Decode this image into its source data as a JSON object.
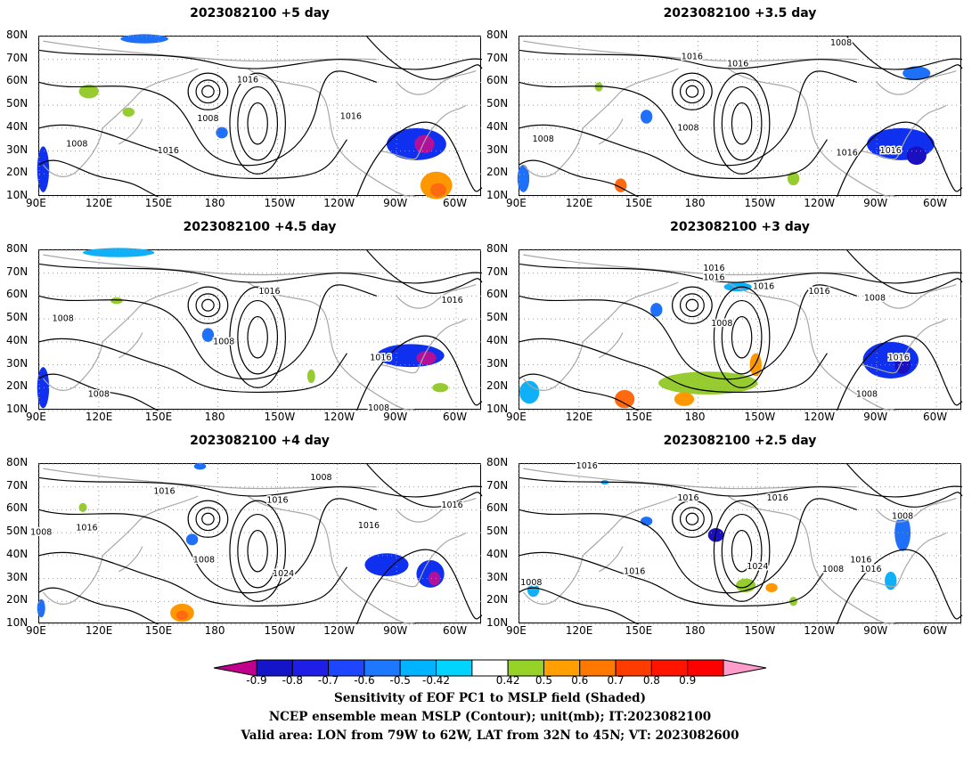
{
  "panels": [
    {
      "title": "2023082100 +5 day",
      "contour_labels": [
        {
          "text": "1016",
          "lon": 195,
          "lat": 61
        },
        {
          "text": "1016",
          "lon": 247,
          "lat": 45
        },
        {
          "text": "1008",
          "lon": 175,
          "lat": 44
        },
        {
          "text": "1008",
          "lon": 109,
          "lat": 33
        },
        {
          "text": "1016",
          "lon": 155,
          "lat": 30
        }
      ],
      "shading": [
        {
          "lon": 280,
          "lat": 33,
          "rx": 15,
          "ry": 7,
          "value": -0.7
        },
        {
          "lon": 284,
          "lat": 33,
          "rx": 5,
          "ry": 4,
          "value": -0.9
        },
        {
          "lon": 182,
          "lat": 38,
          "rx": 3,
          "ry": 2.5,
          "value": -0.6
        },
        {
          "lon": 92,
          "lat": 22,
          "rx": 3,
          "ry": 10,
          "value": -0.7
        },
        {
          "lon": 143,
          "lat": 79,
          "rx": 12,
          "ry": 2,
          "value": -0.6
        },
        {
          "lon": 115,
          "lat": 56,
          "rx": 5,
          "ry": 3,
          "value": 0.5
        },
        {
          "lon": 135,
          "lat": 47,
          "rx": 3,
          "ry": 2,
          "value": 0.5
        },
        {
          "lon": 290,
          "lat": 15,
          "rx": 8,
          "ry": 6,
          "value": 0.6
        },
        {
          "lon": 291,
          "lat": 13,
          "rx": 4,
          "ry": 3,
          "value": 0.7
        }
      ]
    },
    {
      "title": "2023082100 +3.5 day",
      "contour_labels": [
        {
          "text": "1008",
          "lon": 252,
          "lat": 77
        },
        {
          "text": "1016",
          "lon": 177,
          "lat": 71
        },
        {
          "text": "1016",
          "lon": 200,
          "lat": 68
        },
        {
          "text": "1008",
          "lon": 175,
          "lat": 40
        },
        {
          "text": "1008",
          "lon": 102,
          "lat": 35
        },
        {
          "text": "1016",
          "lon": 255,
          "lat": 29
        },
        {
          "text": "1016",
          "lon": 277,
          "lat": 30
        }
      ],
      "shading": [
        {
          "lon": 282,
          "lat": 33,
          "rx": 17,
          "ry": 7,
          "value": -0.7
        },
        {
          "lon": 290,
          "lat": 28,
          "rx": 5,
          "ry": 4,
          "value": -0.8
        },
        {
          "lon": 154,
          "lat": 45,
          "rx": 3,
          "ry": 3,
          "value": -0.6
        },
        {
          "lon": 290,
          "lat": 64,
          "rx": 7,
          "ry": 3,
          "value": -0.6
        },
        {
          "lon": 92,
          "lat": 18,
          "rx": 3,
          "ry": 6,
          "value": -0.6
        },
        {
          "lon": 130,
          "lat": 58,
          "rx": 2,
          "ry": 2,
          "value": 0.5
        },
        {
          "lon": 228,
          "lat": 18,
          "rx": 3,
          "ry": 3,
          "value": 0.5
        },
        {
          "lon": 141,
          "lat": 15,
          "rx": 3,
          "ry": 3,
          "value": 0.7
        }
      ]
    },
    {
      "title": "2023082100 +4.5 day",
      "contour_labels": [
        {
          "text": "1016",
          "lon": 206,
          "lat": 62
        },
        {
          "text": "1016",
          "lon": 298,
          "lat": 58
        },
        {
          "text": "1008",
          "lon": 102,
          "lat": 50
        },
        {
          "text": "1008",
          "lon": 183,
          "lat": 40
        },
        {
          "text": "1016",
          "lon": 262,
          "lat": 33
        },
        {
          "text": "1008",
          "lon": 120,
          "lat": 17
        },
        {
          "text": "1008",
          "lon": 261,
          "lat": 11
        }
      ],
      "shading": [
        {
          "lon": 277,
          "lat": 34,
          "rx": 17,
          "ry": 5,
          "value": -0.7
        },
        {
          "lon": 285,
          "lat": 33,
          "rx": 5,
          "ry": 3,
          "value": -0.9
        },
        {
          "lon": 175,
          "lat": 43,
          "rx": 3,
          "ry": 3,
          "value": -0.6
        },
        {
          "lon": 92,
          "lat": 20,
          "rx": 3,
          "ry": 9,
          "value": -0.7
        },
        {
          "lon": 130,
          "lat": 79,
          "rx": 18,
          "ry": 2,
          "value": -0.5
        },
        {
          "lon": 129,
          "lat": 58,
          "rx": 3,
          "ry": 1.5,
          "value": 0.5
        },
        {
          "lon": 227,
          "lat": 25,
          "rx": 2,
          "ry": 3,
          "value": 0.5
        },
        {
          "lon": 292,
          "lat": 20,
          "rx": 4,
          "ry": 2,
          "value": 0.5
        }
      ]
    },
    {
      "title": "2023082100 +3 day",
      "contour_labels": [
        {
          "text": "1016",
          "lon": 188,
          "lat": 72
        },
        {
          "text": "1016",
          "lon": 188,
          "lat": 68
        },
        {
          "text": "1016",
          "lon": 213,
          "lat": 64
        },
        {
          "text": "1016",
          "lon": 241,
          "lat": 62
        },
        {
          "text": "1008",
          "lon": 269,
          "lat": 59
        },
        {
          "text": "1008",
          "lon": 192,
          "lat": 48
        },
        {
          "text": "1016",
          "lon": 281,
          "lat": 33
        },
        {
          "text": "1008",
          "lon": 265,
          "lat": 17
        }
      ],
      "shading": [
        {
          "lon": 277,
          "lat": 32,
          "rx": 14,
          "ry": 8,
          "value": -0.7
        },
        {
          "lon": 283,
          "lat": 30,
          "rx": 4,
          "ry": 4,
          "value": -0.8
        },
        {
          "lon": 159,
          "lat": 54,
          "rx": 3,
          "ry": 3,
          "value": -0.6
        },
        {
          "lon": 200,
          "lat": 64,
          "rx": 7,
          "ry": 2,
          "value": -0.5
        },
        {
          "lon": 95,
          "lat": 18,
          "rx": 5,
          "ry": 5,
          "value": -0.5
        },
        {
          "lon": 185,
          "lat": 22,
          "rx": 25,
          "ry": 5,
          "value": 0.5
        },
        {
          "lon": 143,
          "lat": 15,
          "rx": 5,
          "ry": 4,
          "value": 0.7
        },
        {
          "lon": 173,
          "lat": 15,
          "rx": 5,
          "ry": 3,
          "value": 0.6
        },
        {
          "lon": 209,
          "lat": 30,
          "rx": 3,
          "ry": 5,
          "value": 0.6
        }
      ]
    },
    {
      "title": "2023082100 +4 day",
      "contour_labels": [
        {
          "text": "1016",
          "lon": 153,
          "lat": 68
        },
        {
          "text": "1008",
          "lon": 232,
          "lat": 74
        },
        {
          "text": "1016",
          "lon": 210,
          "lat": 64
        },
        {
          "text": "1016",
          "lon": 298,
          "lat": 62
        },
        {
          "text": "1016",
          "lon": 114,
          "lat": 52
        },
        {
          "text": "1016",
          "lon": 256,
          "lat": 53
        },
        {
          "text": "1008",
          "lon": 91,
          "lat": 50
        },
        {
          "text": "1008",
          "lon": 173,
          "lat": 38
        },
        {
          "text": "1024",
          "lon": 213,
          "lat": 32
        }
      ],
      "shading": [
        {
          "lon": 265,
          "lat": 36,
          "rx": 11,
          "ry": 5,
          "value": -0.7
        },
        {
          "lon": 287,
          "lat": 32,
          "rx": 7,
          "ry": 6,
          "value": -0.7
        },
        {
          "lon": 289,
          "lat": 30,
          "rx": 3,
          "ry": 3,
          "value": -0.9
        },
        {
          "lon": 167,
          "lat": 47,
          "rx": 3,
          "ry": 2.5,
          "value": -0.6
        },
        {
          "lon": 171,
          "lat": 79,
          "rx": 3,
          "ry": 1.5,
          "value": -0.6
        },
        {
          "lon": 91,
          "lat": 17,
          "rx": 2,
          "ry": 4,
          "value": -0.6
        },
        {
          "lon": 162,
          "lat": 15,
          "rx": 6,
          "ry": 4,
          "value": 0.6
        },
        {
          "lon": 162,
          "lat": 14,
          "rx": 3,
          "ry": 2,
          "value": 0.7
        },
        {
          "lon": 112,
          "lat": 61,
          "rx": 2,
          "ry": 2,
          "value": 0.5
        }
      ]
    },
    {
      "title": "2023082100 +2.5 day",
      "contour_labels": [
        {
          "text": "1016",
          "lon": 124,
          "lat": 79
        },
        {
          "text": "1016",
          "lon": 175,
          "lat": 65
        },
        {
          "text": "1016",
          "lon": 220,
          "lat": 65
        },
        {
          "text": "1008",
          "lon": 283,
          "lat": 57
        },
        {
          "text": "1024",
          "lon": 210,
          "lat": 35
        },
        {
          "text": "1016",
          "lon": 148,
          "lat": 33
        },
        {
          "text": "1008",
          "lon": 248,
          "lat": 34
        },
        {
          "text": "1016",
          "lon": 262,
          "lat": 38
        },
        {
          "text": "1016",
          "lon": 267,
          "lat": 34
        },
        {
          "text": "1008",
          "lon": 96,
          "lat": 28
        }
      ],
      "shading": [
        {
          "lon": 283,
          "lat": 50,
          "rx": 4,
          "ry": 8,
          "value": -0.6
        },
        {
          "lon": 277,
          "lat": 29,
          "rx": 3,
          "ry": 4,
          "value": -0.5
        },
        {
          "lon": 189,
          "lat": 49,
          "rx": 4,
          "ry": 3,
          "value": -0.8
        },
        {
          "lon": 154,
          "lat": 55,
          "rx": 3,
          "ry": 2,
          "value": -0.6
        },
        {
          "lon": 133,
          "lat": 72,
          "rx": 2,
          "ry": 1,
          "value": -0.5
        },
        {
          "lon": 97,
          "lat": 25,
          "rx": 3,
          "ry": 3,
          "value": -0.5
        },
        {
          "lon": 204,
          "lat": 27,
          "rx": 5,
          "ry": 3,
          "value": 0.5
        },
        {
          "lon": 217,
          "lat": 26,
          "rx": 3,
          "ry": 2,
          "value": 0.6
        },
        {
          "lon": 228,
          "lat": 20,
          "rx": 2,
          "ry": 2,
          "value": 0.5
        }
      ]
    }
  ],
  "axes": {
    "lon_ticks": [
      "90E",
      "120E",
      "150E",
      "180",
      "150W",
      "120W",
      "90W",
      "60W"
    ],
    "lon_values": [
      90,
      120,
      150,
      180,
      210,
      240,
      270,
      300
    ],
    "lat_ticks": [
      "10N",
      "20N",
      "30N",
      "40N",
      "50N",
      "60N",
      "70N",
      "80N"
    ],
    "lat_values": [
      10,
      20,
      30,
      40,
      50,
      60,
      70,
      80
    ],
    "lon_range": [
      90,
      313
    ],
    "lat_range": [
      10,
      80
    ]
  },
  "colorbar": {
    "labels": [
      "-0.9",
      "-0.8",
      "-0.7",
      "-0.6",
      "-0.5",
      "-0.42",
      "0.42",
      "0.5",
      "0.6",
      "0.7",
      "0.8",
      "0.9"
    ],
    "colors": [
      "#c1008c",
      "#1414c8",
      "#1e1ee6",
      "#1e46ff",
      "#1e78ff",
      "#00b4ff",
      "#00d4ff",
      "#ffffff",
      "#96d228",
      "#ffa000",
      "#ff7800",
      "#ff3c00",
      "#ff1400",
      "#ff0000",
      "#ff9ccc"
    ]
  },
  "footer": {
    "line1": "Sensitivity of EOF PC1 to MSLP field (Shaded)",
    "line2": "NCEP ensemble mean MSLP (Contour); unit(mb); IT:2023082100",
    "line3": "Valid area: LON from 79W to 62W, LAT from 32N to 45N; VT: 2023082600"
  }
}
